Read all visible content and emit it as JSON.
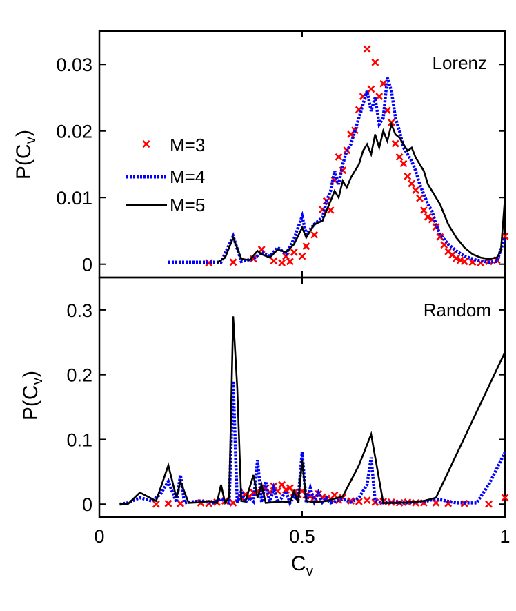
{
  "chart_data": [
    {
      "type": "line",
      "title": "Lorenz",
      "ylabel": "P(C",
      "ylabel_sub": "v",
      "ylabel_close": ")",
      "xlim": [
        0,
        1
      ],
      "ylim": [
        -0.002,
        0.035
      ],
      "yticks": [
        0,
        0.01,
        0.02,
        0.03
      ],
      "ytick_labels": [
        "0",
        "0.01",
        "0.02",
        "0.03"
      ],
      "legend": [
        {
          "label": "M=3",
          "style": "markers-x",
          "color": "#ff0000"
        },
        {
          "label": "M=4",
          "style": "dotted",
          "color": "#0000ff"
        },
        {
          "label": "M=5",
          "style": "solid",
          "color": "#000000"
        }
      ],
      "series": [
        {
          "name": "M=3",
          "x": [
            0.27,
            0.33,
            0.38,
            0.4,
            0.43,
            0.45,
            0.46,
            0.47,
            0.48,
            0.5,
            0.51,
            0.53,
            0.55,
            0.56,
            0.57,
            0.58,
            0.59,
            0.6,
            0.61,
            0.62,
            0.63,
            0.64,
            0.65,
            0.66,
            0.67,
            0.68,
            0.69,
            0.7,
            0.71,
            0.72,
            0.73,
            0.74,
            0.75,
            0.76,
            0.77,
            0.78,
            0.79,
            0.8,
            0.81,
            0.82,
            0.83,
            0.84,
            0.85,
            0.86,
            0.87,
            0.88,
            0.89,
            0.9,
            0.92,
            0.94,
            0.96,
            0.98,
            1.0
          ],
          "y": [
            0.0002,
            0.0003,
            0.0008,
            0.0022,
            0.0005,
            0.0002,
            0.0012,
            0.0004,
            0.0018,
            0.0012,
            0.0027,
            0.0044,
            0.0082,
            0.0095,
            0.0081,
            0.0126,
            0.0161,
            0.0141,
            0.0171,
            0.0195,
            0.0201,
            0.0232,
            0.0252,
            0.0323,
            0.0263,
            0.0303,
            0.0252,
            0.0271,
            0.0231,
            0.0213,
            0.0181,
            0.0161,
            0.0151,
            0.0132,
            0.0121,
            0.0111,
            0.0099,
            0.0081,
            0.0071,
            0.0067,
            0.0056,
            0.0041,
            0.0029,
            0.0019,
            0.0014,
            0.0009,
            0.0006,
            0.0004,
            0.0003,
            0.0002,
            0.0004,
            0.0006,
            0.0042
          ]
        },
        {
          "name": "M=4",
          "x": [
            0.17,
            0.25,
            0.3,
            0.33,
            0.35,
            0.38,
            0.4,
            0.42,
            0.44,
            0.46,
            0.48,
            0.5,
            0.51,
            0.53,
            0.55,
            0.56,
            0.57,
            0.58,
            0.59,
            0.6,
            0.61,
            0.62,
            0.63,
            0.64,
            0.65,
            0.66,
            0.67,
            0.68,
            0.69,
            0.7,
            0.71,
            0.72,
            0.73,
            0.74,
            0.75,
            0.76,
            0.77,
            0.78,
            0.79,
            0.8,
            0.81,
            0.82,
            0.83,
            0.84,
            0.86,
            0.88,
            0.9,
            0.93,
            0.96,
            0.98,
            1.0
          ],
          "y": [
            0.0003,
            0.0003,
            0.0003,
            0.0042,
            0.0004,
            0.0008,
            0.0018,
            0.0012,
            0.0025,
            0.0015,
            0.0038,
            0.0072,
            0.0045,
            0.006,
            0.007,
            0.0095,
            0.011,
            0.014,
            0.012,
            0.015,
            0.017,
            0.018,
            0.02,
            0.022,
            0.024,
            0.026,
            0.023,
            0.025,
            0.021,
            0.022,
            0.028,
            0.026,
            0.022,
            0.02,
            0.0175,
            0.0165,
            0.0155,
            0.014,
            0.012,
            0.0105,
            0.009,
            0.008,
            0.006,
            0.0045,
            0.003,
            0.002,
            0.0012,
            0.0006,
            0.0003,
            0.0004,
            0.004
          ]
        },
        {
          "name": "M=5",
          "x": [
            0.29,
            0.31,
            0.33,
            0.35,
            0.37,
            0.39,
            0.4,
            0.42,
            0.44,
            0.46,
            0.48,
            0.5,
            0.51,
            0.53,
            0.55,
            0.56,
            0.57,
            0.58,
            0.59,
            0.6,
            0.61,
            0.62,
            0.63,
            0.64,
            0.65,
            0.66,
            0.67,
            0.68,
            0.69,
            0.7,
            0.71,
            0.72,
            0.73,
            0.74,
            0.75,
            0.76,
            0.77,
            0.78,
            0.79,
            0.8,
            0.81,
            0.82,
            0.83,
            0.84,
            0.85,
            0.86,
            0.87,
            0.88,
            0.9,
            0.92,
            0.94,
            0.96,
            0.98,
            0.99,
            1.0
          ],
          "y": [
            0.0002,
            0.001,
            0.004,
            0.0008,
            0.0006,
            0.002,
            0.0015,
            0.001,
            0.0022,
            0.0018,
            0.003,
            0.0055,
            0.004,
            0.006,
            0.0065,
            0.008,
            0.0095,
            0.011,
            0.01,
            0.0125,
            0.0115,
            0.013,
            0.014,
            0.015,
            0.017,
            0.018,
            0.0165,
            0.0195,
            0.0175,
            0.02,
            0.0185,
            0.021,
            0.0195,
            0.019,
            0.018,
            0.017,
            0.0175,
            0.016,
            0.015,
            0.014,
            0.012,
            0.011,
            0.01,
            0.009,
            0.0075,
            0.006,
            0.005,
            0.004,
            0.0025,
            0.0015,
            0.001,
            0.0008,
            0.001,
            0.002,
            0.01
          ]
        }
      ]
    },
    {
      "type": "line",
      "title": "Random",
      "ylabel": "P(C",
      "ylabel_sub": "v",
      "ylabel_close": ")",
      "xlabel": "C",
      "xlabel_sub": "v",
      "xlim": [
        0,
        1
      ],
      "ylim": [
        -0.02,
        0.35
      ],
      "yticks": [
        0,
        0.1,
        0.2,
        0.3
      ],
      "ytick_labels": [
        "0",
        "0.1",
        "0.2",
        "0.3"
      ],
      "xticks": [
        0,
        0.5,
        1
      ],
      "xtick_labels": [
        "0",
        "0.5",
        "1"
      ],
      "series": [
        {
          "name": "M=3",
          "x": [
            0.14,
            0.17,
            0.2,
            0.25,
            0.27,
            0.29,
            0.31,
            0.33,
            0.35,
            0.36,
            0.37,
            0.38,
            0.39,
            0.4,
            0.41,
            0.42,
            0.43,
            0.44,
            0.45,
            0.46,
            0.47,
            0.48,
            0.49,
            0.5,
            0.51,
            0.52,
            0.53,
            0.54,
            0.55,
            0.56,
            0.57,
            0.58,
            0.59,
            0.6,
            0.62,
            0.64,
            0.66,
            0.68,
            0.7,
            0.72,
            0.74,
            0.76,
            0.78,
            0.8,
            0.83,
            0.86,
            0.9,
            0.96,
            1.0
          ],
          "y": [
            0.0,
            0.001,
            0.001,
            0.002,
            0.001,
            0.003,
            0.005,
            0.002,
            0.01,
            0.015,
            0.012,
            0.018,
            0.02,
            0.022,
            0.025,
            0.018,
            0.028,
            0.02,
            0.03,
            0.022,
            0.025,
            0.018,
            0.015,
            0.02,
            0.014,
            0.012,
            0.01,
            0.016,
            0.011,
            0.009,
            0.008,
            0.014,
            0.006,
            0.01,
            0.005,
            0.004,
            0.006,
            0.003,
            0.004,
            0.003,
            0.002,
            0.003,
            0.002,
            0.002,
            0.002,
            0.001,
            0.001,
            0.0,
            0.01
          ]
        },
        {
          "name": "M=4",
          "x": [
            0.05,
            0.07,
            0.1,
            0.13,
            0.15,
            0.17,
            0.19,
            0.2,
            0.21,
            0.22,
            0.25,
            0.28,
            0.3,
            0.31,
            0.32,
            0.33,
            0.34,
            0.35,
            0.36,
            0.37,
            0.38,
            0.39,
            0.4,
            0.41,
            0.42,
            0.43,
            0.44,
            0.45,
            0.46,
            0.47,
            0.48,
            0.49,
            0.5,
            0.51,
            0.52,
            0.53,
            0.54,
            0.55,
            0.56,
            0.57,
            0.58,
            0.6,
            0.62,
            0.64,
            0.66,
            0.67,
            0.68,
            0.7,
            0.72,
            0.75,
            0.8,
            0.83,
            0.88,
            0.93,
            0.96,
            1.0
          ],
          "y": [
            0.0,
            0.002,
            0.01,
            0.005,
            0.015,
            0.035,
            0.003,
            0.045,
            0.002,
            0.003,
            0.005,
            0.002,
            0.008,
            0.004,
            0.002,
            0.19,
            0.002,
            0.02,
            0.003,
            0.01,
            0.004,
            0.068,
            0.003,
            0.035,
            0.002,
            0.025,
            0.003,
            0.01,
            0.02,
            0.002,
            0.012,
            0.006,
            0.08,
            0.002,
            0.025,
            0.004,
            0.018,
            0.003,
            0.01,
            0.002,
            0.004,
            0.008,
            0.003,
            0.01,
            0.03,
            0.072,
            0.005,
            0.002,
            0.003,
            0.002,
            0.004,
            0.008,
            0.002,
            0.002,
            0.03,
            0.08
          ]
        },
        {
          "name": "M=5",
          "x": [
            0.05,
            0.07,
            0.1,
            0.14,
            0.17,
            0.19,
            0.2,
            0.22,
            0.25,
            0.27,
            0.29,
            0.3,
            0.31,
            0.32,
            0.33,
            0.34,
            0.35,
            0.36,
            0.38,
            0.39,
            0.4,
            0.41,
            0.43,
            0.45,
            0.47,
            0.48,
            0.49,
            0.5,
            0.51,
            0.53,
            0.56,
            0.6,
            0.64,
            0.67,
            0.7,
            0.73,
            0.77,
            0.8,
            0.83,
            1.0
          ],
          "y": [
            0.0,
            0.0,
            0.018,
            0.005,
            0.06,
            0.01,
            0.035,
            0.002,
            0.003,
            0.005,
            0.002,
            0.03,
            0.002,
            0.01,
            0.29,
            0.18,
            0.005,
            0.004,
            0.045,
            0.01,
            0.03,
            0.002,
            0.003,
            0.004,
            0.003,
            0.02,
            0.002,
            0.068,
            0.005,
            0.003,
            0.005,
            0.012,
            0.06,
            0.108,
            0.002,
            0.002,
            0.003,
            0.005,
            0.01,
            0.235
          ]
        }
      ]
    }
  ]
}
